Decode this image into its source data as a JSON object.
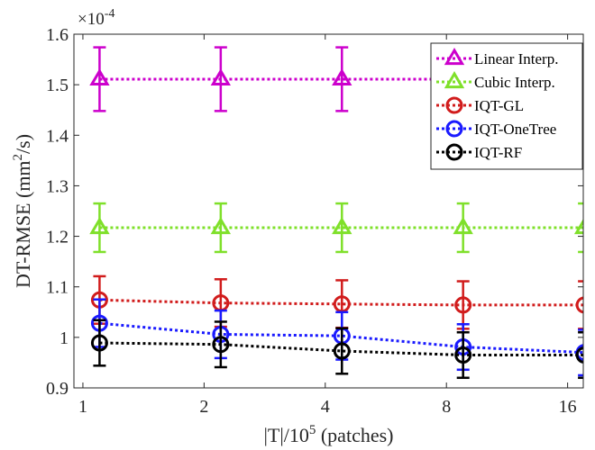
{
  "chart_data": {
    "type": "line",
    "xlabel_prefix": "|T|/10",
    "xlabel_exp": "5",
    "xlabel_suffix": " (patches)",
    "ylabel_prefix": "DT-RMSE (mm",
    "ylabel_exp": "2",
    "ylabel_suffix": "/s)",
    "y_multiplier_base": "×10",
    "y_multiplier_exp": "-4",
    "x_scale": "log2",
    "x_ticks": [
      1,
      2,
      4,
      8,
      16
    ],
    "x_tick_labels": [
      "1",
      "2",
      "4",
      "8",
      "16"
    ],
    "xlim": [
      0.95,
      17.5
    ],
    "ylim": [
      0.9,
      1.6
    ],
    "y_ticks": [
      0.9,
      1,
      1.1,
      1.2,
      1.3,
      1.4,
      1.5,
      1.6
    ],
    "y_tick_labels": [
      "0.9",
      "1",
      "1.1",
      "1.2",
      "1.3",
      "1.4",
      "1.5",
      "1.6"
    ],
    "grid": false,
    "legend_position": "top-right",
    "x": [
      1.1,
      2.2,
      4.4,
      8.8,
      17.6
    ],
    "series": [
      {
        "name": "Linear Interp.",
        "color": "#cc00cc",
        "marker": "triangle",
        "values": [
          1.511,
          1.511,
          1.511,
          1.511,
          1.511
        ],
        "errors": [
          0.063,
          0.063,
          0.063,
          0.063,
          0.063
        ]
      },
      {
        "name": "Cubic Interp.",
        "color": "#7fe02a",
        "marker": "triangle",
        "values": [
          1.217,
          1.217,
          1.217,
          1.217,
          1.217
        ],
        "errors": [
          0.048,
          0.048,
          0.048,
          0.048,
          0.048
        ]
      },
      {
        "name": "IQT-GL",
        "color": "#d11c1c",
        "marker": "circle",
        "values": [
          1.074,
          1.068,
          1.066,
          1.064,
          1.064
        ],
        "errors": [
          0.047,
          0.047,
          0.047,
          0.047,
          0.047
        ]
      },
      {
        "name": "IQT-OneTree",
        "color": "#1a1aff",
        "marker": "circle",
        "values": [
          1.028,
          1.006,
          1.003,
          0.981,
          0.97
        ],
        "errors": [
          0.047,
          0.047,
          0.047,
          0.045,
          0.045
        ]
      },
      {
        "name": "IQT-RF",
        "color": "#000000",
        "marker": "circle",
        "values": [
          0.989,
          0.986,
          0.973,
          0.965,
          0.965
        ],
        "errors": [
          0.045,
          0.045,
          0.045,
          0.045,
          0.045
        ]
      }
    ]
  }
}
